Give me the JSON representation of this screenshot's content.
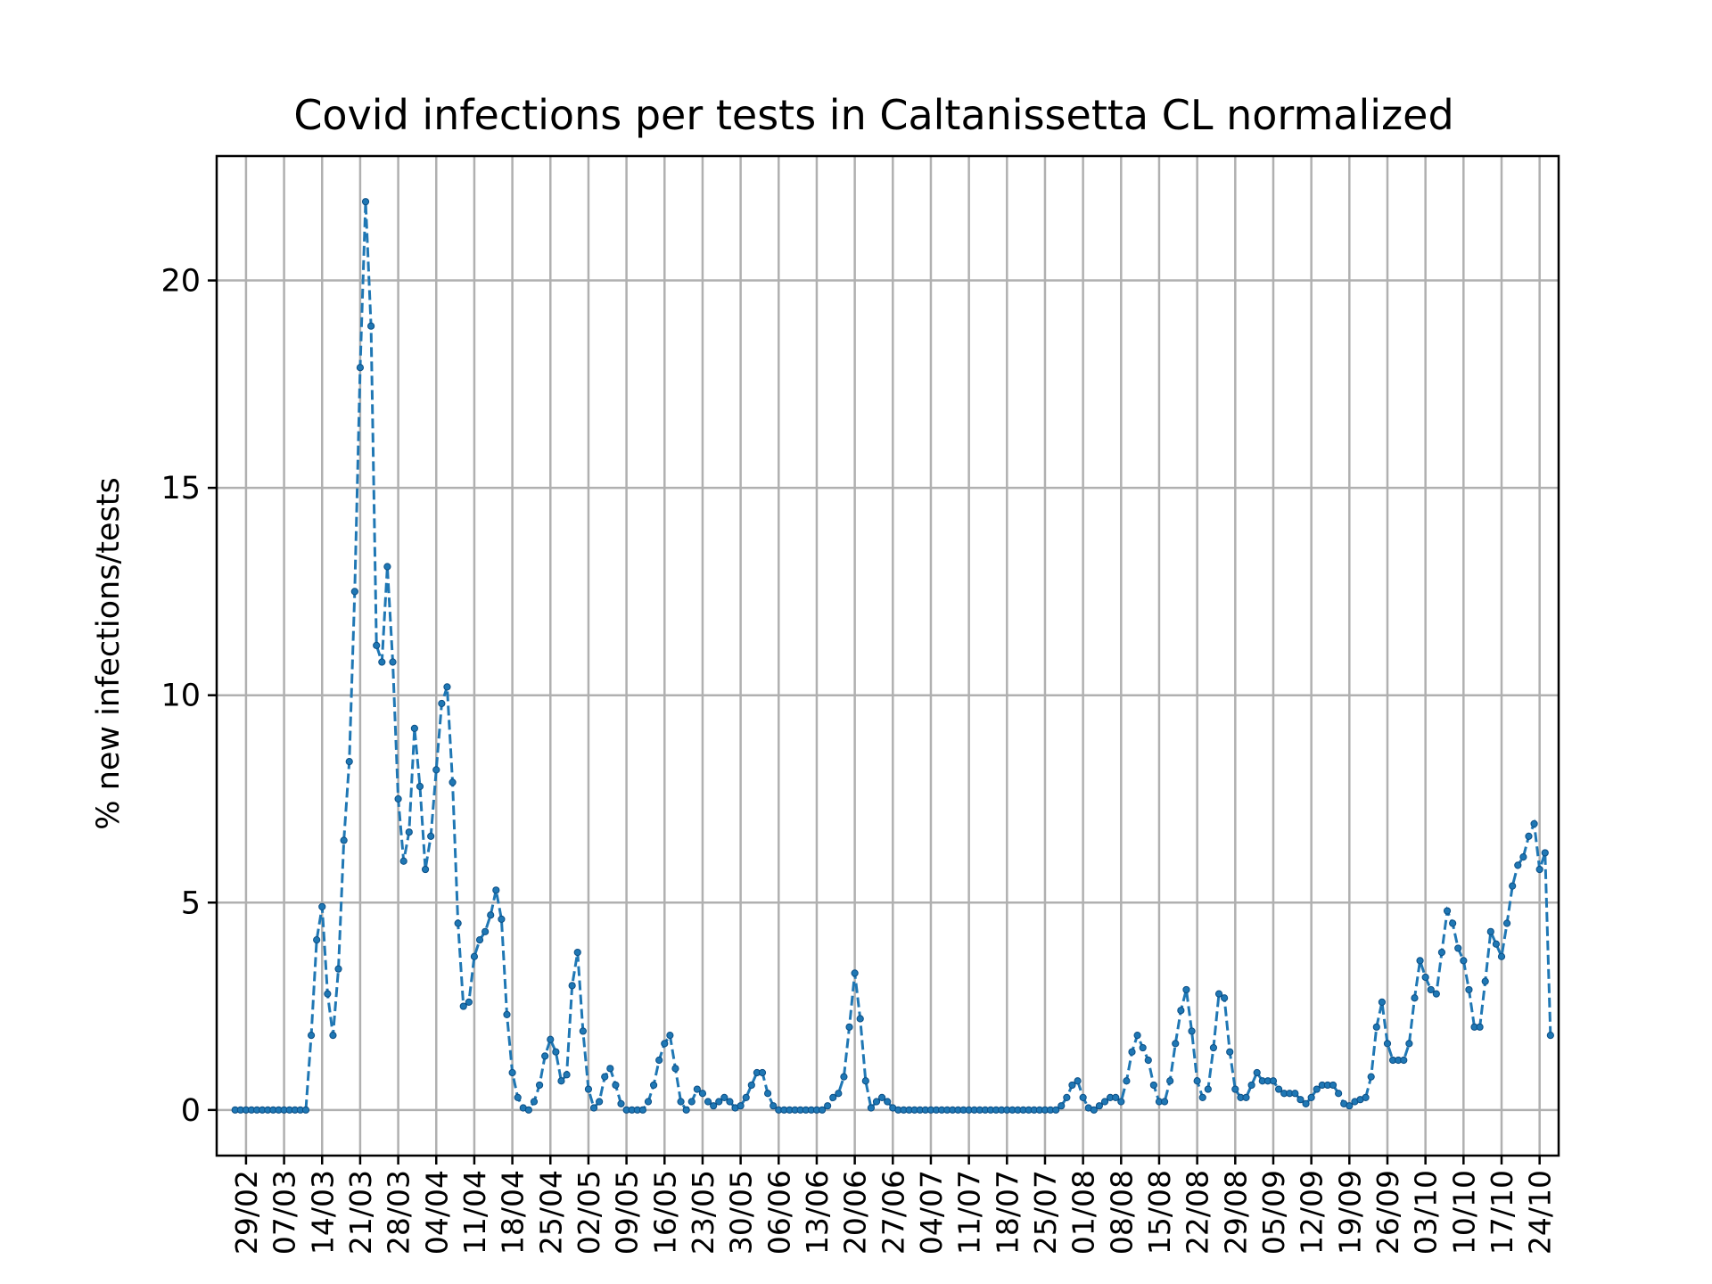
{
  "chart_data": {
    "type": "line",
    "title": "Covid infections per tests in Caltanissetta CL normalized",
    "xlabel": "",
    "ylabel": "% new infections/tests",
    "grid": true,
    "ylim": [
      -1.1,
      23.0
    ],
    "yticks": [
      0,
      5,
      10,
      15,
      20
    ],
    "xticks": [
      "29/02",
      "07/03",
      "14/03",
      "21/03",
      "28/03",
      "04/04",
      "11/04",
      "18/04",
      "25/04",
      "02/05",
      "09/05",
      "16/05",
      "23/05",
      "30/05",
      "06/06",
      "13/06",
      "20/06",
      "27/06",
      "04/07",
      "11/07",
      "18/07",
      "25/07",
      "01/08",
      "08/08",
      "15/08",
      "22/08",
      "29/08",
      "05/09",
      "12/09",
      "19/09",
      "26/09",
      "03/10",
      "10/10",
      "17/10",
      "24/10"
    ],
    "x_start_date": "2020-02-27",
    "x_unit": "day",
    "series": [
      {
        "name": "",
        "color": "#1f77b4",
        "linestyle": "dashed",
        "marker": "point",
        "values": [
          0,
          0,
          0,
          0,
          0,
          0,
          0,
          0,
          0,
          0,
          0,
          0,
          0,
          0,
          1.8,
          4.1,
          4.9,
          2.8,
          1.8,
          3.4,
          6.5,
          8.4,
          12.5,
          17.9,
          21.9,
          18.9,
          11.2,
          10.8,
          13.1,
          10.8,
          7.5,
          6.0,
          6.7,
          9.2,
          7.8,
          5.8,
          6.6,
          8.2,
          9.8,
          10.2,
          7.9,
          4.5,
          2.5,
          2.6,
          3.7,
          4.1,
          4.3,
          4.7,
          5.3,
          4.6,
          2.3,
          0.9,
          0.3,
          0.05,
          0.0,
          0.2,
          0.6,
          1.3,
          1.7,
          1.4,
          0.7,
          0.85,
          3.0,
          3.8,
          1.9,
          0.5,
          0.05,
          0.2,
          0.8,
          1.0,
          0.6,
          0.15,
          0.0,
          0.0,
          0.0,
          0.0,
          0.2,
          0.6,
          1.2,
          1.6,
          1.8,
          1.0,
          0.2,
          0.0,
          0.2,
          0.5,
          0.4,
          0.2,
          0.1,
          0.2,
          0.3,
          0.2,
          0.05,
          0.1,
          0.3,
          0.6,
          0.9,
          0.9,
          0.4,
          0.1,
          0.0,
          0.0,
          0.0,
          0.0,
          0.0,
          0.0,
          0.0,
          0.0,
          0.0,
          0.1,
          0.3,
          0.4,
          0.8,
          2.0,
          3.3,
          2.2,
          0.7,
          0.05,
          0.2,
          0.3,
          0.2,
          0.05,
          0.0,
          0.0,
          0.0,
          0.0,
          0.0,
          0.0,
          0.0,
          0.0,
          0.0,
          0.0,
          0.0,
          0.0,
          0.0,
          0.0,
          0.0,
          0.0,
          0.0,
          0.0,
          0.0,
          0.0,
          0.0,
          0.0,
          0.0,
          0.0,
          0.0,
          0.0,
          0.0,
          0.0,
          0.0,
          0.0,
          0.1,
          0.3,
          0.6,
          0.7,
          0.3,
          0.05,
          0.0,
          0.1,
          0.2,
          0.3,
          0.3,
          0.2,
          0.7,
          1.4,
          1.8,
          1.5,
          1.2,
          0.6,
          0.2,
          0.2,
          0.7,
          1.6,
          2.4,
          2.9,
          1.9,
          0.7,
          0.3,
          0.5,
          1.5,
          2.8,
          2.7,
          1.4,
          0.5,
          0.3,
          0.3,
          0.6,
          0.9,
          0.7,
          0.7,
          0.7,
          0.5,
          0.4,
          0.4,
          0.4,
          0.25,
          0.15,
          0.3,
          0.5,
          0.6,
          0.6,
          0.6,
          0.4,
          0.15,
          0.1,
          0.2,
          0.25,
          0.3,
          0.8,
          2.0,
          2.6,
          1.6,
          1.2,
          1.2,
          1.2,
          1.6,
          2.7,
          3.6,
          3.2,
          2.9,
          2.8,
          3.8,
          4.8,
          4.5,
          3.9,
          3.6,
          2.9,
          2.0,
          2.0,
          3.1,
          4.3,
          4.0,
          3.7,
          4.5,
          5.4,
          5.9,
          6.1,
          6.6,
          6.9,
          5.8,
          6.2,
          1.8
        ]
      }
    ]
  }
}
